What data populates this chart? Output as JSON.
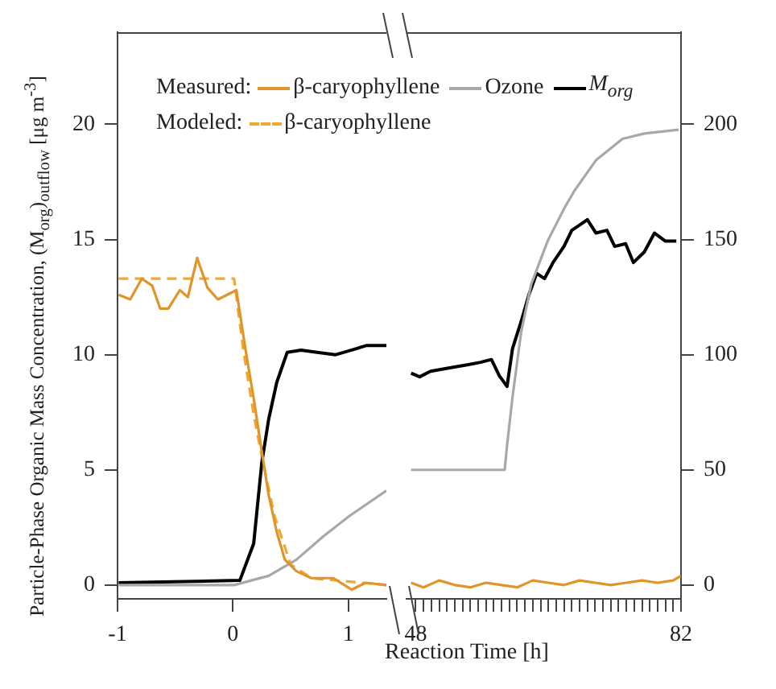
{
  "chart_data": [
    {
      "type": "line",
      "ylabel": "Particle-Phase Organic Mass Concentration, (M$_{org}$)$_{outflow}$ [μg m$^{-3}$]",
      "annotations": [
        "Measured:",
        "Modeled:"
      ],
      "legend": "top",
      "grid": false,
      "marker": "none",
      "xlim": [
        -1,
        1.33
      ],
      "xticks": [
        -1,
        0,
        1
      ],
      "ylim": [
        -0.6,
        24
      ],
      "yticks": [
        0,
        5,
        10,
        15,
        20
      ],
      "series": [
        {
          "name": "β-caryophyllene",
          "color": "#e0952a",
          "line_style": "solid",
          "x": [
            -0.99,
            -0.89,
            -0.79,
            -0.7,
            -0.63,
            -0.56,
            -0.46,
            -0.39,
            -0.31,
            -0.22,
            -0.13,
            0.03,
            0.11,
            0.18,
            0.25,
            0.31,
            0.38,
            0.45,
            0.55,
            0.68,
            0.87,
            1.03,
            1.15,
            1.33
          ],
          "values": [
            12.6,
            12.4,
            13.3,
            13.0,
            12.0,
            12.0,
            12.8,
            12.5,
            14.2,
            12.9,
            12.4,
            12.8,
            10.2,
            8.1,
            5.8,
            3.9,
            2.3,
            1.1,
            0.6,
            0.3,
            0.3,
            -0.2,
            0.1,
            0.0
          ]
        },
        {
          "name": "Ozone",
          "color": "#a8a8a8",
          "line_style": "solid",
          "x": [
            -0.99,
            0.01,
            0.31,
            0.55,
            0.78,
            1.01,
            1.33
          ],
          "values": [
            0.0,
            0.0,
            0.4,
            1.1,
            2.1,
            3.0,
            4.1
          ]
        },
        {
          "name": "M$_{org}$",
          "color": "#000000",
          "line_style": "solid",
          "x": [
            -0.99,
            0.06,
            0.18,
            0.25,
            0.31,
            0.38,
            0.47,
            0.59,
            0.73,
            0.89,
            1.03,
            1.16,
            1.33
          ],
          "values": [
            0.1,
            0.2,
            1.8,
            5.3,
            7.2,
            8.8,
            10.1,
            10.2,
            10.1,
            10.0,
            10.2,
            10.4,
            10.4
          ]
        },
        {
          "name": "β-caryophyllene",
          "color": "#f0a830",
          "line_style": "dashed",
          "x": [
            -0.99,
            0.01,
            0.09,
            0.18,
            0.25,
            0.36,
            0.5,
            0.68,
            1.33
          ],
          "values": [
            13.3,
            13.3,
            10.2,
            7.4,
            5.6,
            3.0,
            0.9,
            0.3,
            0.0
          ]
        }
      ]
    },
    {
      "type": "line",
      "xlabel": "Reaction Time [h]",
      "grid": false,
      "marker": "none",
      "xlim": [
        46.8,
        82
      ],
      "xticks": [
        48,
        {
          "value": 49,
          "label": null
        },
        {
          "value": 50,
          "label": null
        },
        {
          "value": 51,
          "label": null
        },
        {
          "value": 52,
          "label": null
        },
        {
          "value": 53,
          "label": null
        },
        {
          "value": 54,
          "label": null
        },
        {
          "value": 55,
          "label": null
        },
        {
          "value": 56,
          "label": null
        },
        {
          "value": 57,
          "label": null
        },
        {
          "value": 58,
          "label": null
        },
        {
          "value": 59,
          "label": null
        },
        {
          "value": 60,
          "label": null
        },
        {
          "value": 61,
          "label": null
        },
        {
          "value": 62,
          "label": null
        },
        {
          "value": 63,
          "label": null
        },
        {
          "value": 64,
          "label": null
        },
        {
          "value": 65,
          "label": null
        },
        {
          "value": 66,
          "label": null
        },
        {
          "value": 67,
          "label": null
        },
        {
          "value": 68,
          "label": null
        },
        {
          "value": 69,
          "label": null
        },
        {
          "value": 70,
          "label": null
        },
        {
          "value": 71,
          "label": null
        },
        {
          "value": 72,
          "label": null
        },
        {
          "value": 73,
          "label": null
        },
        {
          "value": 74,
          "label": null
        },
        {
          "value": 75,
          "label": null
        },
        {
          "value": 76,
          "label": null
        },
        {
          "value": 77,
          "label": null
        },
        {
          "value": 78,
          "label": null
        },
        {
          "value": 79,
          "label": null
        },
        {
          "value": 80,
          "label": null
        },
        {
          "value": 81,
          "label": null
        },
        82
      ],
      "y2lim": [
        -6,
        240
      ],
      "y2ticks": [
        0,
        50,
        100,
        150,
        200
      ],
      "series": [
        {
          "color": "#e0952a",
          "axis": "y2",
          "x": [
            47.4,
            49,
            51,
            53,
            55,
            57,
            59,
            61,
            63,
            65,
            67,
            69,
            71,
            73,
            75,
            77,
            79,
            81,
            82
          ],
          "values": [
            1,
            -1,
            2,
            0,
            -1,
            1,
            0,
            -1,
            2,
            1,
            0,
            2,
            1,
            0,
            1,
            2,
            1,
            2,
            4
          ]
        },
        {
          "color": "#a8a8a8",
          "axis": "y2",
          "x": [
            47.4,
            59.4,
            59.7,
            60.4,
            61.5,
            62.8,
            64.9,
            67,
            68.3,
            71.1,
            74.5,
            77.3,
            81.7
          ],
          "values": [
            50,
            50,
            60.5,
            81.5,
            109.6,
            130.6,
            149.3,
            163.3,
            171,
            184.4,
            193.7,
            196,
            197.7
          ]
        },
        {
          "color": "#000000",
          "axis": "y2",
          "x": [
            47.4,
            48.5,
            49.9,
            52.5,
            54.6,
            56.3,
            57.7,
            58.7,
            59.7,
            60.4,
            61.5,
            62.5,
            63.5,
            64.5,
            65.6,
            67,
            68,
            69,
            70,
            71.1,
            72.5,
            73.5,
            74.9,
            75.9,
            77.3,
            78.6,
            80,
            81.4
          ],
          "values": [
            92,
            90.4,
            92.8,
            94.4,
            95.6,
            96.7,
            97.9,
            90.9,
            86.2,
            102.6,
            114.3,
            126,
            135.3,
            133,
            140,
            147,
            154,
            156.3,
            158.6,
            152.8,
            154,
            147,
            148.2,
            140,
            144.6,
            152.8,
            149.3,
            149.3
          ]
        }
      ]
    }
  ]
}
